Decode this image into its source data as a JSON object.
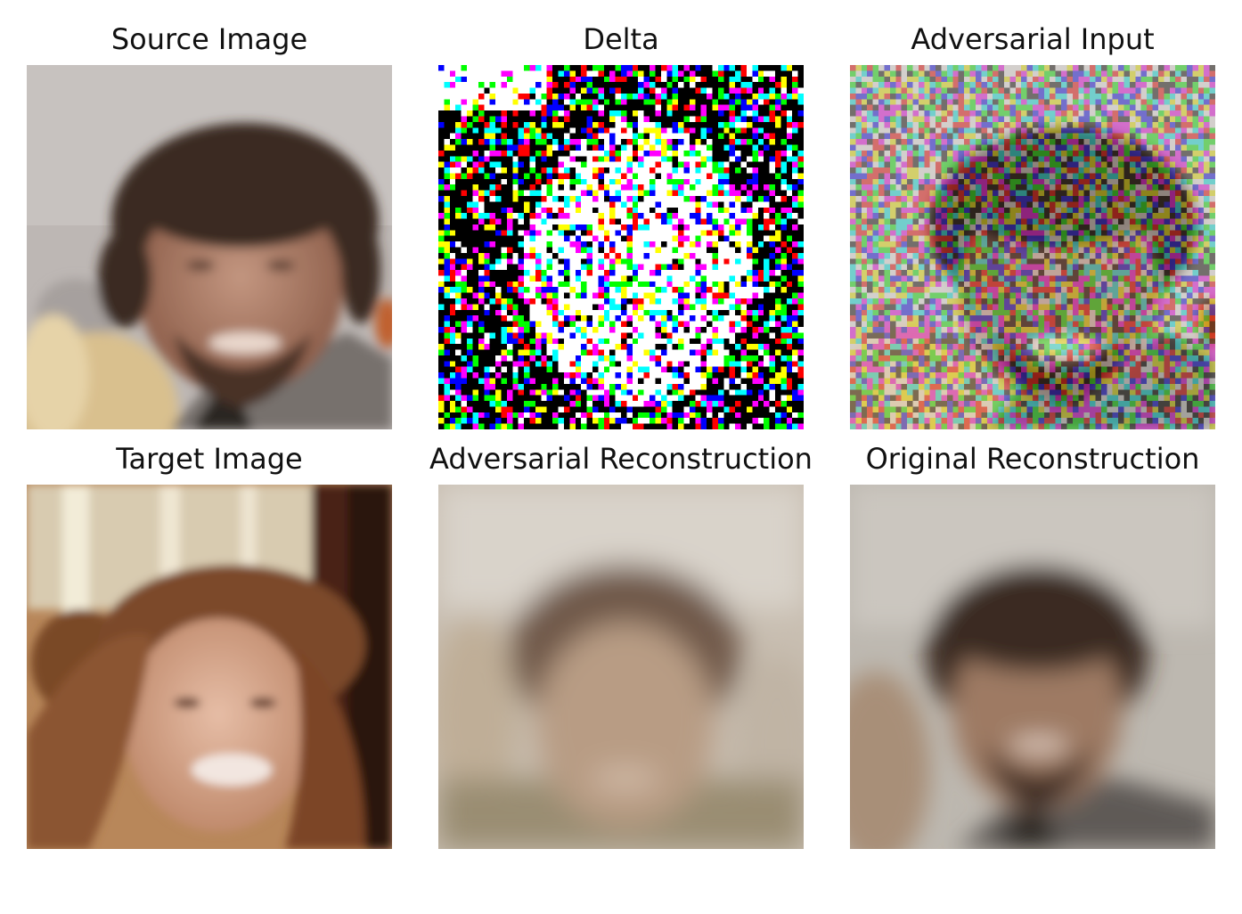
{
  "figure": {
    "panels": [
      {
        "title": "Source Image"
      },
      {
        "title": "Delta"
      },
      {
        "title": "Adversarial Input"
      },
      {
        "title": "Target Image"
      },
      {
        "title": "Adversarial Reconstruction"
      },
      {
        "title": "Original Reconstruction"
      }
    ]
  },
  "colors": {
    "source_bg": "#bcb6b3",
    "source_skin": "#a87a66",
    "source_hair": "#3a2a22",
    "source_jacket": "#7a7876",
    "target_hair": "#8a5430",
    "target_skin": "#d6a992",
    "target_bg": "#c9a77c",
    "recon_bg": "#c9c1b5",
    "recon_hair": "#6b5544",
    "recon_skin": "#b79a82",
    "orig_hair": "#3b2c24",
    "orig_skin": "#9f7c68"
  }
}
